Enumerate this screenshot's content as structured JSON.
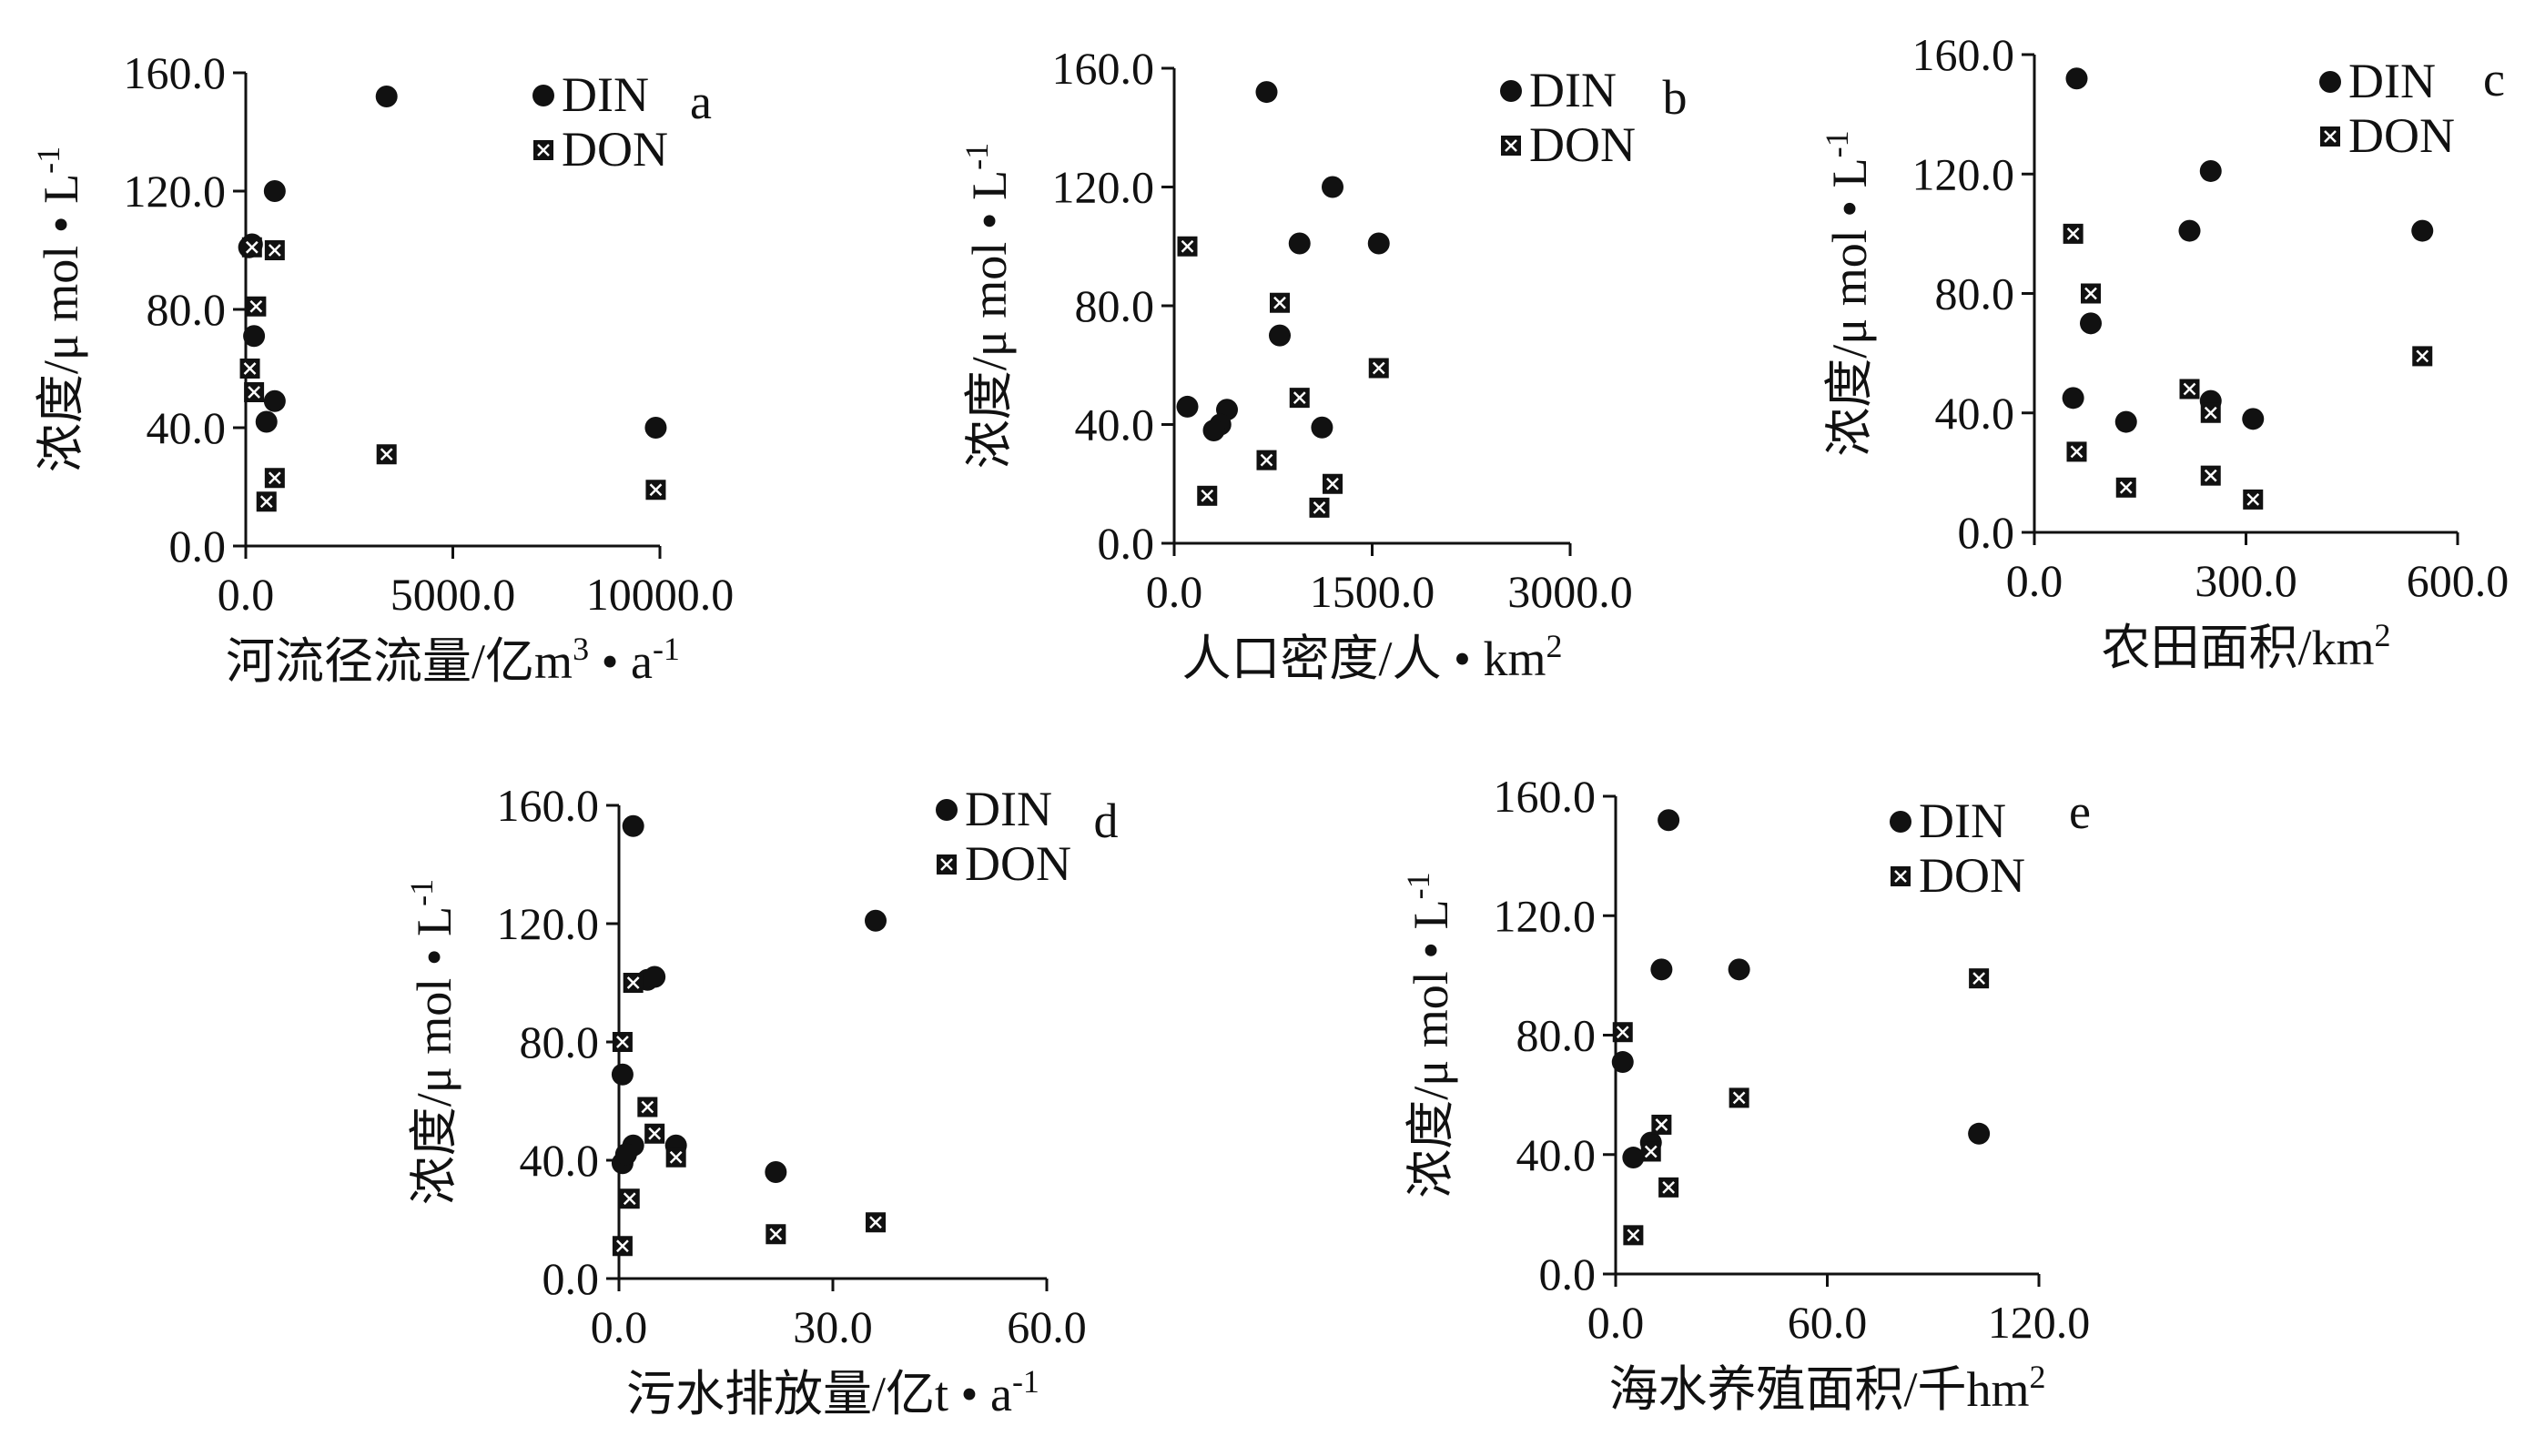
{
  "chart_data": [
    {
      "type": "scatter",
      "letter": "a",
      "xlabel": "河流径流量/亿m³ • a⁻¹",
      "ylabel": "浓度/μ mol • L⁻¹",
      "xlim": [
        0,
        10000
      ],
      "ylim": [
        0,
        160
      ],
      "x_ticks": [
        "0.0",
        "5000.0",
        "10000.0"
      ],
      "x_tick_values": [
        0,
        5000,
        10000
      ],
      "y_ticks": [
        "0.0",
        "40.0",
        "80.0",
        "120.0",
        "160.0"
      ],
      "y_tick_values": [
        0,
        40,
        80,
        120,
        160
      ],
      "legend": [
        "DIN",
        "DON"
      ],
      "series": [
        {
          "name": "DIN",
          "points": [
            [
              3400,
              152
            ],
            [
              700,
              120
            ],
            [
              150,
              102
            ],
            [
              200,
              71
            ],
            [
              700,
              49
            ],
            [
              500,
              42
            ],
            [
              9900,
              40
            ],
            [
              80,
              101
            ]
          ]
        },
        {
          "name": "DON",
          "points": [
            [
              700,
              100
            ],
            [
              150,
              101
            ],
            [
              250,
              81
            ],
            [
              100,
              60
            ],
            [
              200,
              52
            ],
            [
              700,
              23
            ],
            [
              500,
              15
            ],
            [
              3400,
              31
            ],
            [
              9900,
              19
            ]
          ]
        }
      ]
    },
    {
      "type": "scatter",
      "letter": "b",
      "xlabel": "人口密度/人 • km²",
      "ylabel": "浓度/μ mol • L⁻¹",
      "xlim": [
        0,
        3000
      ],
      "ylim": [
        0,
        160
      ],
      "x_ticks": [
        "0.0",
        "1500.0",
        "3000.0"
      ],
      "x_tick_values": [
        0,
        1500,
        3000
      ],
      "y_ticks": [
        "0.0",
        "40.0",
        "80.0",
        "120.0",
        "160.0"
      ],
      "y_tick_values": [
        0,
        40,
        80,
        120,
        160
      ],
      "legend": [
        "DIN",
        "DON"
      ],
      "series": [
        {
          "name": "DIN",
          "points": [
            [
              700,
              152
            ],
            [
              1200,
              120
            ],
            [
              1550,
              101
            ],
            [
              950,
              101
            ],
            [
              800,
              70
            ],
            [
              100,
              46
            ],
            [
              400,
              45
            ],
            [
              350,
              40
            ],
            [
              300,
              38
            ],
            [
              1120,
              39
            ]
          ]
        },
        {
          "name": "DON",
          "points": [
            [
              100,
              100
            ],
            [
              800,
              81
            ],
            [
              950,
              49
            ],
            [
              1550,
              59
            ],
            [
              700,
              28
            ],
            [
              250,
              16
            ],
            [
              1200,
              20
            ],
            [
              1100,
              12
            ]
          ]
        }
      ]
    },
    {
      "type": "scatter",
      "letter": "c",
      "xlabel": "农田面积/km²",
      "ylabel": "浓度/μ mol • L⁻¹",
      "xlim": [
        0,
        600
      ],
      "ylim": [
        0,
        160
      ],
      "x_ticks": [
        "0.0",
        "300.0",
        "600.0"
      ],
      "x_tick_values": [
        0,
        300,
        600
      ],
      "y_ticks": [
        "0.0",
        "40.0",
        "80.0",
        "120.0",
        "160.0"
      ],
      "y_tick_values": [
        0,
        40,
        80,
        120,
        160
      ],
      "legend": [
        "DIN",
        "DON"
      ],
      "series": [
        {
          "name": "DIN",
          "points": [
            [
              60,
              152
            ],
            [
              250,
              121
            ],
            [
              220,
              101
            ],
            [
              550,
              101
            ],
            [
              80,
              70
            ],
            [
              55,
              45
            ],
            [
              250,
              44
            ],
            [
              130,
              37
            ],
            [
              310,
              38
            ]
          ]
        },
        {
          "name": "DON",
          "points": [
            [
              55,
              100
            ],
            [
              80,
              80
            ],
            [
              220,
              48
            ],
            [
              250,
              40
            ],
            [
              550,
              59
            ],
            [
              60,
              27
            ],
            [
              130,
              15
            ],
            [
              250,
              19
            ],
            [
              310,
              11
            ]
          ]
        }
      ]
    },
    {
      "type": "scatter",
      "letter": "d",
      "xlabel": "污水排放量/亿t • a⁻¹",
      "ylabel": "浓度/μ mol • L⁻¹",
      "xlim": [
        0,
        60
      ],
      "ylim": [
        0,
        160
      ],
      "x_ticks": [
        "0.0",
        "30.0",
        "60.0"
      ],
      "x_tick_values": [
        0,
        30,
        60
      ],
      "y_ticks": [
        "0.0",
        "40.0",
        "80.0",
        "120.0",
        "160.0"
      ],
      "y_tick_values": [
        0,
        40,
        80,
        120,
        160
      ],
      "legend": [
        "DIN",
        "DON"
      ],
      "series": [
        {
          "name": "DIN",
          "points": [
            [
              2,
              153
            ],
            [
              36,
              121
            ],
            [
              4,
              101
            ],
            [
              5,
              102
            ],
            [
              0.5,
              69
            ],
            [
              2,
              45
            ],
            [
              8,
              45
            ],
            [
              0.5,
              39
            ],
            [
              1,
              42
            ],
            [
              22,
              36
            ]
          ]
        },
        {
          "name": "DON",
          "points": [
            [
              2,
              100
            ],
            [
              0.5,
              80
            ],
            [
              4,
              58
            ],
            [
              5,
              49
            ],
            [
              8,
              41
            ],
            [
              1.5,
              27
            ],
            [
              0.5,
              11
            ],
            [
              22,
              15
            ],
            [
              36,
              19
            ]
          ]
        }
      ]
    },
    {
      "type": "scatter",
      "letter": "e",
      "xlabel": "海水养殖面积/千hm²",
      "ylabel": "浓度/μ mol • L⁻¹",
      "xlim": [
        0,
        120
      ],
      "ylim": [
        0,
        160
      ],
      "x_ticks": [
        "0.0",
        "60.0",
        "120.0"
      ],
      "x_tick_values": [
        0,
        60,
        120
      ],
      "y_ticks": [
        "0.0",
        "40.0",
        "80.0",
        "120.0",
        "160.0"
      ],
      "y_tick_values": [
        0,
        40,
        80,
        120,
        160
      ],
      "legend": [
        "DIN",
        "DON"
      ],
      "series": [
        {
          "name": "DIN",
          "points": [
            [
              15,
              152
            ],
            [
              13,
              102
            ],
            [
              35,
              102
            ],
            [
              2,
              71
            ],
            [
              103,
              47
            ],
            [
              10,
              44
            ],
            [
              5,
              39
            ]
          ]
        },
        {
          "name": "DON",
          "points": [
            [
              103,
              99
            ],
            [
              2,
              81
            ],
            [
              13,
              50
            ],
            [
              35,
              59
            ],
            [
              10,
              41
            ],
            [
              15,
              29
            ],
            [
              5,
              13
            ]
          ]
        }
      ]
    }
  ]
}
